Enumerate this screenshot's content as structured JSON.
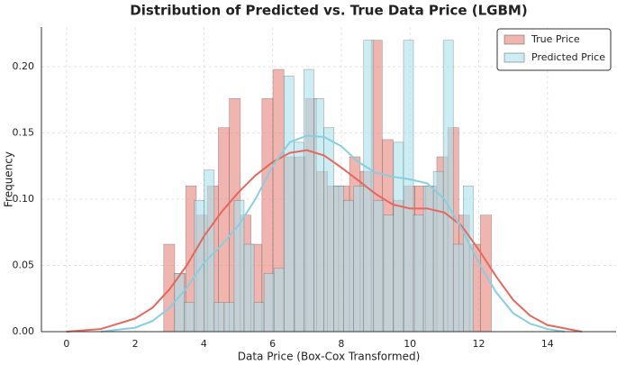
{
  "chart_data": {
    "type": "histogram",
    "title": "Distribution of Predicted vs. True Data Price (LGBM)",
    "xlabel": "Data Price (Box-Cox Transformed)",
    "ylabel": "Frequency",
    "xlim": [
      -0.73,
      16.0
    ],
    "ylim": [
      0,
      0.23
    ],
    "xticks": [
      0,
      2,
      4,
      6,
      8,
      10,
      12,
      14
    ],
    "yticks": [
      {
        "value": 0,
        "label": "0.00"
      },
      {
        "value": 0.05,
        "label": "0.05"
      },
      {
        "value": 0.1,
        "label": "0.10"
      },
      {
        "value": 0.15,
        "label": "0.15"
      },
      {
        "value": 0.2,
        "label": "0.20"
      }
    ],
    "grid": true,
    "legend": "upper right",
    "series": [
      {
        "name": "True Price",
        "color": "#e8837b",
        "line_color": "#e8675b",
        "bins": [
          2.83,
          3.15,
          3.47,
          3.78,
          4.1,
          4.42,
          4.74,
          5.06,
          5.37,
          5.69,
          6.01,
          6.33,
          6.65,
          6.96,
          7.28,
          7.6,
          7.92,
          8.24,
          8.55,
          8.87,
          9.19,
          9.51,
          9.83,
          10.14,
          10.46,
          10.78,
          11.1,
          11.42,
          11.73,
          12.05,
          12.37
        ],
        "values": [
          0.066,
          0.044,
          0.11,
          0.088,
          0.11,
          0.154,
          0.176,
          0.088,
          0.066,
          0.176,
          0.198,
          0.132,
          0.132,
          0.176,
          0.121,
          0.11,
          0.11,
          0.132,
          0.121,
          0.22,
          0.145,
          0.099,
          0.11,
          0.11,
          0.11,
          0.132,
          0.154,
          0.088,
          0.066,
          0.088
        ],
        "kde": {
          "x": [
            0,
            1,
            2,
            2.5,
            3,
            3.5,
            4,
            4.5,
            5,
            5.5,
            6,
            6.5,
            7,
            7.5,
            8,
            8.5,
            9,
            9.5,
            10,
            10.5,
            11,
            11.5,
            12,
            12.5,
            13,
            13.5,
            14,
            15
          ],
          "values": [
            0.0,
            0.002,
            0.01,
            0.018,
            0.032,
            0.05,
            0.072,
            0.09,
            0.105,
            0.118,
            0.128,
            0.135,
            0.137,
            0.133,
            0.124,
            0.114,
            0.104,
            0.096,
            0.093,
            0.093,
            0.09,
            0.08,
            0.062,
            0.042,
            0.024,
            0.012,
            0.005,
            0.0
          ]
        }
      },
      {
        "name": "Predicted Price",
        "color": "#a8e2ee",
        "line_color": "#87cfe0",
        "bins": [
          3.14,
          3.43,
          3.72,
          4.01,
          4.3,
          4.59,
          4.88,
          5.17,
          5.46,
          5.75,
          6.04,
          6.33,
          6.62,
          6.91,
          7.2,
          7.49,
          7.78,
          8.07,
          8.36,
          8.65,
          8.94,
          9.23,
          9.52,
          9.81,
          10.1,
          10.39,
          10.68,
          10.97,
          11.26,
          11.55,
          11.84
        ],
        "values": [
          0.044,
          0.022,
          0.099,
          0.122,
          0.022,
          0.022,
          0.099,
          0.066,
          0.022,
          0.044,
          0.048,
          0.193,
          0.143,
          0.198,
          0.176,
          0.154,
          0.11,
          0.099,
          0.11,
          0.22,
          0.099,
          0.088,
          0.143,
          0.22,
          0.088,
          0.11,
          0.121,
          0.22,
          0.066,
          0.11
        ],
        "kde": {
          "x": [
            1,
            2,
            2.5,
            3,
            3.5,
            4,
            4.5,
            5,
            5.5,
            6,
            6.5,
            7,
            7.5,
            8,
            8.5,
            9,
            9.5,
            10,
            10.5,
            11,
            11.5,
            12,
            12.5,
            13,
            13.5,
            14,
            14.5
          ],
          "values": [
            0.0,
            0.003,
            0.008,
            0.018,
            0.033,
            0.052,
            0.065,
            0.08,
            0.1,
            0.125,
            0.143,
            0.148,
            0.147,
            0.14,
            0.128,
            0.12,
            0.117,
            0.115,
            0.112,
            0.1,
            0.078,
            0.052,
            0.03,
            0.014,
            0.006,
            0.002,
            0.0
          ]
        }
      }
    ]
  }
}
